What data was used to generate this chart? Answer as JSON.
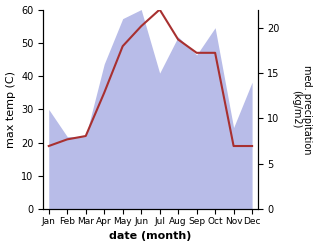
{
  "months": [
    "Jan",
    "Feb",
    "Mar",
    "Apr",
    "May",
    "Jun",
    "Jul",
    "Aug",
    "Sep",
    "Oct",
    "Nov",
    "Dec"
  ],
  "temp_values": [
    19,
    21,
    22,
    35,
    49,
    55,
    60,
    51,
    47,
    47,
    19,
    19
  ],
  "precip_values": [
    11,
    8,
    8,
    16,
    21,
    22,
    15,
    19,
    17,
    20,
    9,
    14
  ],
  "temp_color": "#a83030",
  "precip_fill_color": "#b8bce8",
  "xlabel": "date (month)",
  "ylabel_left": "max temp (C)",
  "ylabel_right": "med. precipitation\n(kg/m2)",
  "ylim_left": [
    0,
    60
  ],
  "ylim_right": [
    0,
    22
  ],
  "yticks_left": [
    0,
    10,
    20,
    30,
    40,
    50,
    60
  ],
  "yticks_right": [
    0,
    5,
    10,
    15,
    20
  ],
  "background_color": "#ffffff",
  "fig_width": 3.18,
  "fig_height": 2.47,
  "dpi": 100
}
